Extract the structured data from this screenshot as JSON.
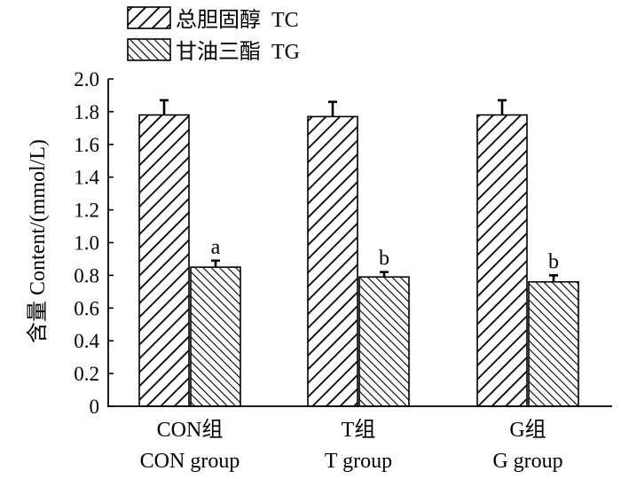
{
  "chart_data": {
    "type": "bar",
    "categories": [
      [
        "CON组",
        "CON group"
      ],
      [
        "T组",
        "T group"
      ],
      [
        "G组",
        "G group"
      ]
    ],
    "series": [
      {
        "name": "总胆固醇  TC",
        "values": [
          1.78,
          1.77,
          1.78
        ],
        "errors": [
          0.09,
          0.09,
          0.09
        ],
        "labels": [
          "",
          "",
          ""
        ],
        "pattern": "diagonal-forward"
      },
      {
        "name": "甘油三酯  TG",
        "values": [
          0.85,
          0.79,
          0.76
        ],
        "errors": [
          0.04,
          0.03,
          0.04
        ],
        "labels": [
          "a",
          "b",
          "b"
        ],
        "pattern": "diagonal-backward-dense"
      }
    ],
    "ylabel": "含量  Content/(mmol/L)",
    "ylim": [
      0,
      2.0
    ],
    "yticks": [
      "0",
      "0.2",
      "0.4",
      "0.6",
      "0.8",
      "1.0",
      "1.2",
      "1.4",
      "1.6",
      "1.8",
      "2.0"
    ],
    "legend_position": "top-left",
    "grid": false
  }
}
